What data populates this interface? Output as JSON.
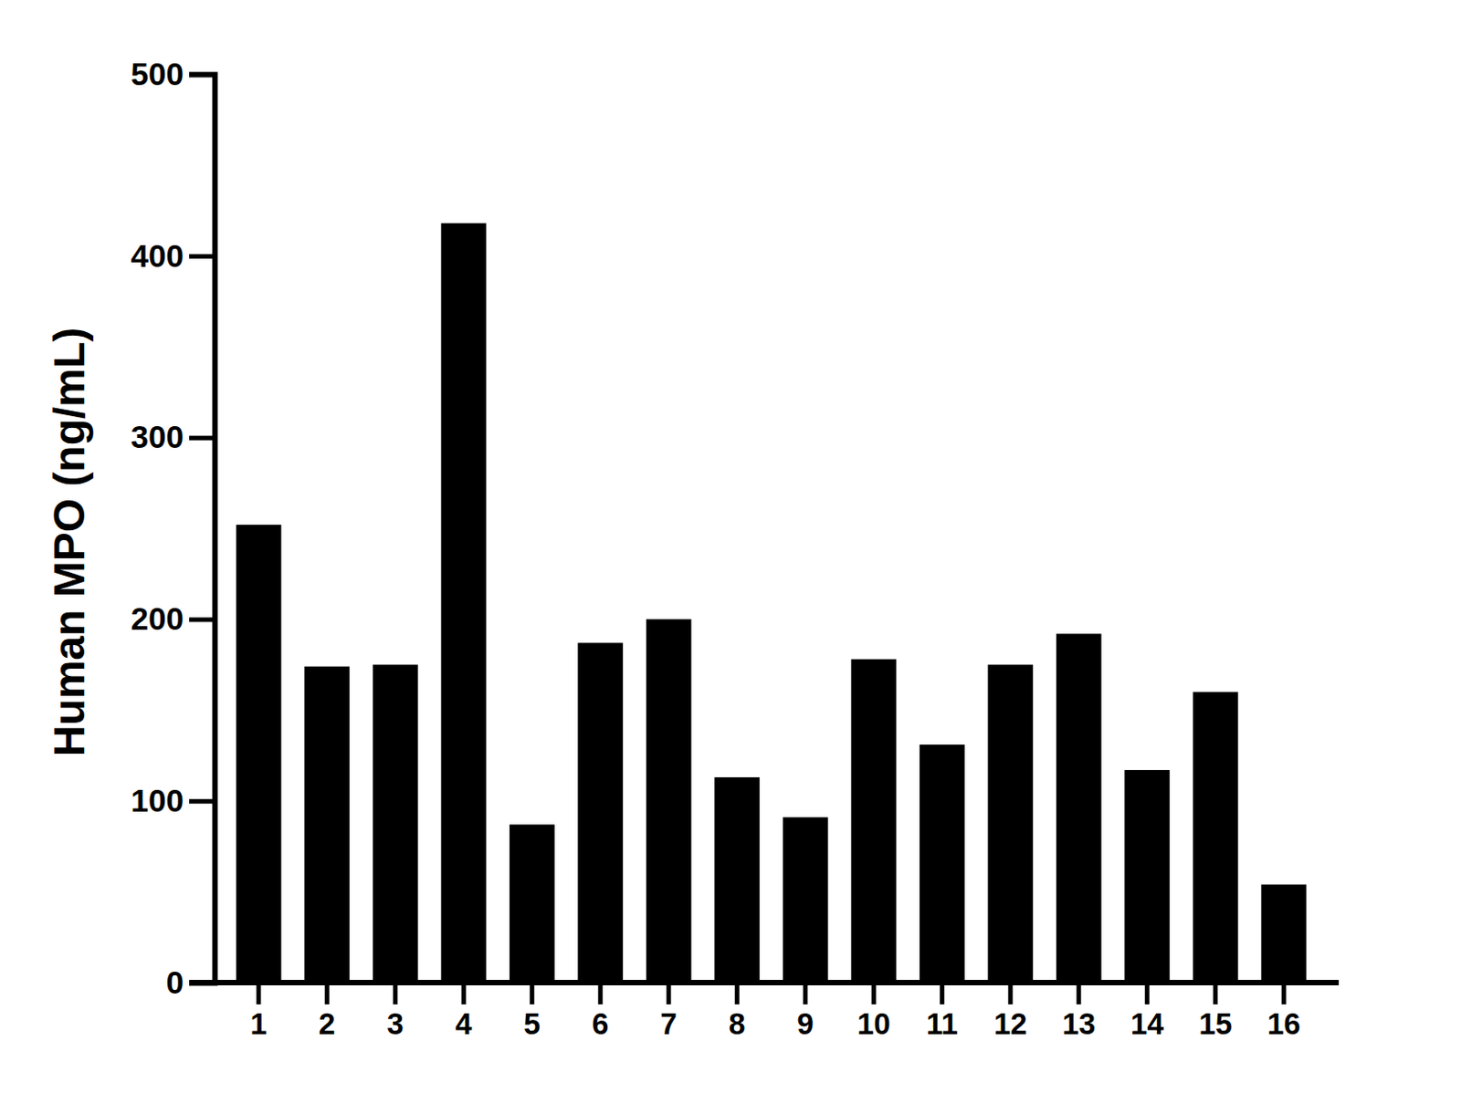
{
  "chart_data": {
    "type": "bar",
    "y_label": "Human MPO (ng/mL)",
    "categories": [
      "1",
      "2",
      "3",
      "4",
      "5",
      "6",
      "7",
      "8",
      "9",
      "10",
      "11",
      "12",
      "13",
      "14",
      "15",
      "16"
    ],
    "values": [
      252,
      174,
      175,
      418,
      87,
      187,
      200,
      113,
      91,
      178,
      131,
      175,
      192,
      117,
      160,
      54
    ],
    "color": "#000000",
    "ylim": [
      0,
      500
    ],
    "yticks": [
      0,
      100,
      200,
      300,
      400,
      500
    ],
    "grid": false
  }
}
